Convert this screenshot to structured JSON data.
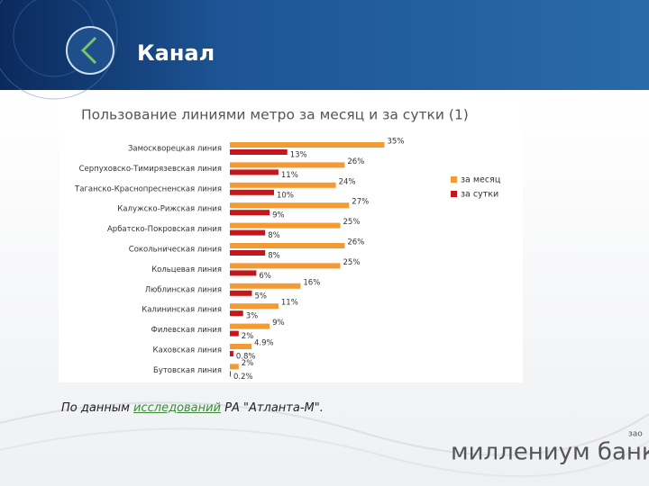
{
  "slide_title": "Канал",
  "footer": {
    "before": "По данным ",
    "link": "исследований",
    "after": " РА \"Атланта-М\"."
  },
  "logo": {
    "name": "миллениум банк",
    "suffix": "зао"
  },
  "chart_data": {
    "type": "bar",
    "orientation": "horizontal",
    "title": "Пользование линиями метро за месяц и за сутки (1)",
    "categories": [
      "Замоскворецкая линия",
      "Серпуховско-Тимирязевская линия",
      "Таганско-Краснопресненская линия",
      "Калужско-Рижская линия",
      "Арбатско-Покровская линия",
      "Сокольническая линия",
      "Кольцевая линия",
      "Люблинская линия",
      "Калининская линия",
      "Филевская линия",
      "Каховская линия",
      "Бутовская линия"
    ],
    "series": [
      {
        "name": "за месяц",
        "color": "#f39a32",
        "values": [
          35,
          26,
          24,
          27,
          25,
          26,
          25,
          16,
          11,
          9,
          4.9,
          2
        ],
        "value_labels": [
          "35%",
          "26%",
          "24%",
          "27%",
          "25%",
          "26%",
          "25%",
          "16%",
          "11%",
          "9%",
          "4.9%",
          "2%"
        ]
      },
      {
        "name": "за сутки",
        "color": "#c4161c",
        "values": [
          13,
          11,
          10,
          9,
          8,
          8,
          6,
          5,
          3,
          2,
          0.8,
          0.2
        ],
        "value_labels": [
          "13%",
          "11%",
          "10%",
          "9%",
          "8%",
          "8%",
          "6%",
          "5%",
          "3%",
          "2%",
          "0.8%",
          "0.2%"
        ]
      }
    ],
    "legend": "right"
  }
}
